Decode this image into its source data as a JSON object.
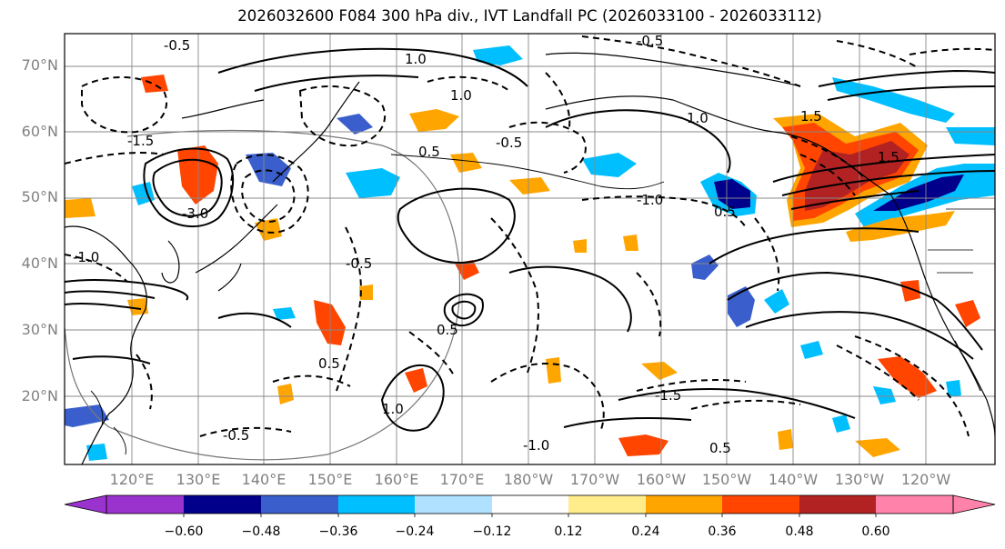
{
  "title": "2026032600 F084 300 hPa div., IVT Landfall PC (2026033100 - 2026033112)",
  "map": {
    "lat_labels": [
      "70°N",
      "60°N",
      "50°N",
      "40°N",
      "30°N",
      "20°N"
    ],
    "lon_labels": [
      "120°E",
      "130°E",
      "140°E",
      "150°E",
      "160°E",
      "170°E",
      "180°W",
      "170°W",
      "160°W",
      "150°W",
      "140°W",
      "130°W",
      "120°W"
    ],
    "contour_labels": [
      "-0.5",
      "1.0",
      "-1.5",
      "-0.5",
      "1.5",
      "1.0",
      "-0.5",
      "1.0",
      "0.5",
      "-1.0",
      "0.5",
      "1.5",
      "-1.0",
      "-0.5",
      "0.5",
      "1.0",
      "-0.5",
      "-1.5",
      "0.5",
      "-3.0",
      "-1.0",
      "0.5"
    ],
    "colors": {
      "land": "#000000",
      "grid": "#888888",
      "contour": "#000000"
    }
  },
  "colorbar": {
    "ticks": [
      "−0.60",
      "−0.48",
      "−0.36",
      "−0.24",
      "−0.12",
      "0.12",
      "0.24",
      "0.36",
      "0.48",
      "0.60"
    ],
    "colors": [
      "#9a32cd",
      "#00008b",
      "#3a5fcd",
      "#00bfff",
      "#b0e2ff",
      "#ffffff",
      "#ffec8b",
      "#ffa500",
      "#ff4500",
      "#b22222",
      "#ff82ab"
    ]
  }
}
